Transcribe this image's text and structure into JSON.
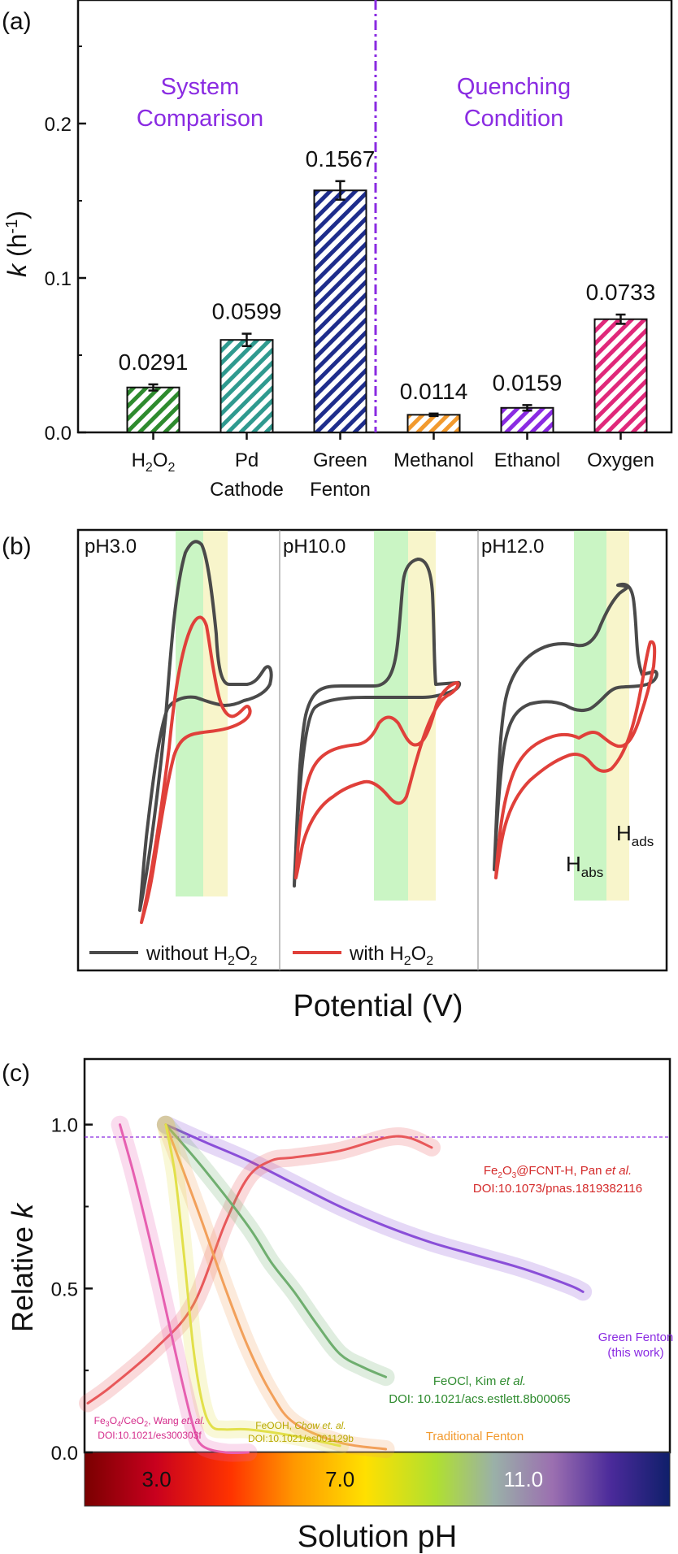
{
  "chart_data": [
    {
      "panel": "a",
      "panel_label": "(a)",
      "type": "bar",
      "ylabel": "k (h-1)",
      "ylabel_main": "k",
      "ylabel_unit_open": " (h",
      "ylabel_unit_sup": "-1",
      "ylabel_unit_close": ")",
      "ylim": [
        0,
        0.28
      ],
      "yticks": [
        "0.0",
        "0.1",
        "0.2"
      ],
      "group_labels": [
        "System Comparison",
        "Quenching Condition"
      ],
      "group_label_lines": [
        [
          "System",
          "Comparison"
        ],
        [
          "Quenching",
          "Condition"
        ]
      ],
      "categories": [
        "H2O2",
        "Pd Cathode",
        "Green Fenton",
        "Methanol",
        "Ethanol",
        "Oxygen"
      ],
      "category_lines": [
        [
          "H2O2"
        ],
        [
          "Pd",
          "Cathode"
        ],
        [
          "Green",
          "Fenton"
        ],
        [
          "Methanol"
        ],
        [
          "Ethanol"
        ],
        [
          "Oxygen"
        ]
      ],
      "values": [
        0.0291,
        0.0599,
        0.1567,
        0.0114,
        0.0159,
        0.0733
      ],
      "value_labels": [
        "0.0291",
        "0.0599",
        "0.1567",
        "0.0114",
        "0.0159",
        "0.0733"
      ],
      "errors": [
        0.002,
        0.004,
        0.006,
        0.0008,
        0.0018,
        0.003
      ],
      "colors": [
        "#2e8b2e",
        "#2f9a8f",
        "#1e2d8c",
        "#f29a2e",
        "#8a2be2",
        "#e0287a"
      ],
      "divider_color": "#8a2be2"
    },
    {
      "panel": "b",
      "panel_label": "(b)",
      "type": "line",
      "xlabel": "Potential (V)",
      "subpanels": [
        "pH3.0",
        "pH10.0",
        "pH12.0"
      ],
      "legend": [
        "without H2O2",
        "with H2O2"
      ],
      "series_colors": [
        "#4a4a4a",
        "#e0403a"
      ],
      "region_labels": [
        "Habs",
        "Hads"
      ],
      "region_colors": [
        "#b8f2b0",
        "#f7f3c2"
      ]
    },
    {
      "panel": "c",
      "panel_label": "(c)",
      "type": "line",
      "xlabel": "Solution pH",
      "ylabel": "Relative k",
      "ylabel_main": "Relative ",
      "ylabel_italic": "k",
      "ylim": [
        0,
        1.2
      ],
      "yticks": [
        "0.0",
        "0.5",
        "1.0"
      ],
      "colorbar_ticks": [
        "3.0",
        "7.0",
        "11.0"
      ],
      "series": [
        {
          "name": "Green Fenton (this work)",
          "color": "#8a4fd8",
          "x": [
            3.2,
            4.0,
            5.0,
            6.0,
            7.0,
            8.0,
            9.0,
            10.0,
            11.0,
            12.0,
            12.3
          ],
          "y": [
            1.0,
            0.95,
            0.89,
            0.82,
            0.75,
            0.69,
            0.64,
            0.6,
            0.56,
            0.51,
            0.49
          ]
        },
        {
          "name": "Fe2O3@FCNT-H, Pan et al.",
          "color": "#e8585a",
          "x": [
            1.5,
            2.0,
            3.0,
            3.8,
            4.5,
            5.0,
            5.5,
            6.0,
            7.0,
            8.0,
            8.5,
            9.0
          ],
          "y": [
            0.15,
            0.2,
            0.32,
            0.45,
            0.7,
            0.84,
            0.89,
            0.9,
            0.92,
            0.96,
            0.96,
            0.93
          ]
        },
        {
          "name": "FeOCl, Kim et al.",
          "color": "#6fae6f",
          "x": [
            3.2,
            4.0,
            5.0,
            5.5,
            6.0,
            6.5,
            7.0,
            7.5,
            8.0
          ],
          "y": [
            1.0,
            0.87,
            0.69,
            0.58,
            0.49,
            0.39,
            0.3,
            0.26,
            0.23
          ]
        },
        {
          "name": "Traditional Fenton",
          "color": "#f2a05a",
          "x": [
            3.2,
            3.5,
            4.0,
            4.5,
            5.0,
            5.5,
            6.0,
            7.0,
            8.0
          ],
          "y": [
            1.0,
            0.89,
            0.7,
            0.5,
            0.32,
            0.18,
            0.09,
            0.03,
            0.01
          ]
        },
        {
          "name": "FeOOH, Chow et al.",
          "color": "#e2e04a",
          "x": [
            3.2,
            3.4,
            3.6,
            3.8,
            4.0,
            4.2,
            4.5,
            5.0,
            6.0,
            7.0
          ],
          "y": [
            1.0,
            0.85,
            0.6,
            0.32,
            0.15,
            0.08,
            0.07,
            0.07,
            0.05,
            0.02
          ]
        },
        {
          "name": "Fe3O4/CeO2, Wang et al.",
          "color": "#e65fb0",
          "x": [
            2.2,
            2.5,
            2.8,
            3.1,
            3.5,
            3.8,
            4.0,
            4.5,
            5.0
          ],
          "y": [
            1.0,
            0.85,
            0.68,
            0.5,
            0.25,
            0.08,
            0.02,
            0.0,
            0.0
          ]
        }
      ],
      "series_labels": [
        {
          "lines": [
            "Green Fenton",
            "(this work)"
          ],
          "color": "#8a2be2"
        },
        {
          "lines": [
            "Fe2O3@FCNT-H, Pan et al.",
            "DOI:10.1073/pnas.1819382116"
          ],
          "color": "#d42a2a"
        },
        {
          "lines": [
            "FeOCl, Kim et al.",
            "DOI: 10.1021/acs.estlett.8b00065"
          ],
          "color": "#2e8b2e"
        },
        {
          "lines": [
            "Traditional Fenton"
          ],
          "color": "#f29a2e"
        },
        {
          "lines": [
            "FeOOH, Chow et al.",
            "DOI:10.1021/es001129b"
          ],
          "color": "#b8a800"
        },
        {
          "lines": [
            "Fe3O4/CeO2, Wang et al.",
            "DOI:10.1021/es300303f"
          ],
          "color": "#d42a8a"
        }
      ]
    }
  ]
}
